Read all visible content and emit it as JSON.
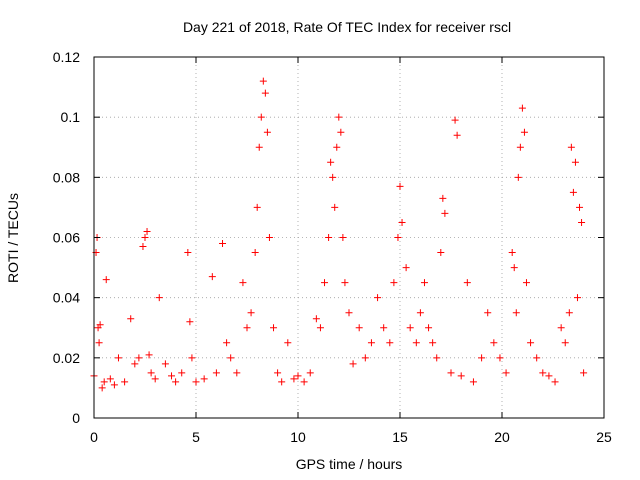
{
  "chart_data": {
    "type": "scatter",
    "title": "Day 221 of 2018, Rate Of TEC Index for receiver rscl",
    "xlabel": "GPS time / hours",
    "ylabel": "ROTI / TECUs",
    "xlim": [
      0,
      25
    ],
    "ylim": [
      0,
      0.12
    ],
    "x_ticks": [
      0,
      5,
      10,
      15,
      20,
      25
    ],
    "y_ticks": [
      0,
      0.02,
      0.04,
      0.06,
      0.08,
      0.1,
      0.12
    ],
    "x_tick_labels": [
      "0",
      "5",
      "10",
      "15",
      "20",
      "25"
    ],
    "y_tick_labels": [
      "0",
      "0.02",
      "0.04",
      "0.06",
      "0.08",
      "0.1",
      "0.12"
    ],
    "grid": true,
    "marker": "+",
    "series": [
      {
        "name": "ROTI",
        "color": "#ff0000",
        "x": [
          0.0,
          0.1,
          0.15,
          0.2,
          0.25,
          0.3,
          0.4,
          0.5,
          0.6,
          0.8,
          1.0,
          1.2,
          1.5,
          1.8,
          2.0,
          2.2,
          2.4,
          2.5,
          2.6,
          2.7,
          2.8,
          3.0,
          3.2,
          3.5,
          3.8,
          4.0,
          4.3,
          4.6,
          4.7,
          4.8,
          5.0,
          5.4,
          5.8,
          6.0,
          6.3,
          6.5,
          6.7,
          7.0,
          7.3,
          7.5,
          7.7,
          7.9,
          8.0,
          8.1,
          8.2,
          8.3,
          8.4,
          8.5,
          8.6,
          8.8,
          9.0,
          9.2,
          9.5,
          9.8,
          10.0,
          10.3,
          10.6,
          10.9,
          11.1,
          11.3,
          11.5,
          11.6,
          11.7,
          11.8,
          11.9,
          12.0,
          12.1,
          12.2,
          12.3,
          12.5,
          12.7,
          13.0,
          13.3,
          13.6,
          13.9,
          14.2,
          14.5,
          14.7,
          14.9,
          15.0,
          15.1,
          15.3,
          15.5,
          15.8,
          16.0,
          16.2,
          16.4,
          16.6,
          16.8,
          17.0,
          17.1,
          17.2,
          17.5,
          17.7,
          17.8,
          18.0,
          18.3,
          18.6,
          19.0,
          19.3,
          19.6,
          19.9,
          20.2,
          20.5,
          20.6,
          20.7,
          20.8,
          20.9,
          21.0,
          21.1,
          21.2,
          21.4,
          21.7,
          22.0,
          22.3,
          22.6,
          22.9,
          23.1,
          23.3,
          23.4,
          23.5,
          23.6,
          23.7,
          23.8,
          23.9,
          24.0
        ],
        "y": [
          0.014,
          0.055,
          0.06,
          0.03,
          0.025,
          0.031,
          0.01,
          0.012,
          0.046,
          0.013,
          0.011,
          0.02,
          0.012,
          0.033,
          0.018,
          0.02,
          0.057,
          0.06,
          0.062,
          0.021,
          0.015,
          0.013,
          0.04,
          0.018,
          0.014,
          0.012,
          0.015,
          0.055,
          0.032,
          0.02,
          0.012,
          0.013,
          0.047,
          0.015,
          0.058,
          0.025,
          0.02,
          0.015,
          0.045,
          0.03,
          0.035,
          0.055,
          0.07,
          0.09,
          0.1,
          0.112,
          0.108,
          0.095,
          0.06,
          0.03,
          0.015,
          0.012,
          0.025,
          0.013,
          0.014,
          0.012,
          0.015,
          0.033,
          0.03,
          0.045,
          0.06,
          0.085,
          0.08,
          0.07,
          0.09,
          0.1,
          0.095,
          0.06,
          0.045,
          0.035,
          0.018,
          0.03,
          0.02,
          0.025,
          0.04,
          0.03,
          0.025,
          0.045,
          0.06,
          0.077,
          0.065,
          0.05,
          0.03,
          0.025,
          0.035,
          0.045,
          0.03,
          0.025,
          0.02,
          0.055,
          0.073,
          0.068,
          0.015,
          0.099,
          0.094,
          0.014,
          0.045,
          0.012,
          0.02,
          0.035,
          0.025,
          0.02,
          0.015,
          0.055,
          0.05,
          0.035,
          0.08,
          0.09,
          0.103,
          0.095,
          0.045,
          0.025,
          0.02,
          0.015,
          0.014,
          0.012,
          0.03,
          0.025,
          0.035,
          0.09,
          0.075,
          0.085,
          0.04,
          0.07,
          0.065,
          0.015
        ]
      }
    ]
  }
}
